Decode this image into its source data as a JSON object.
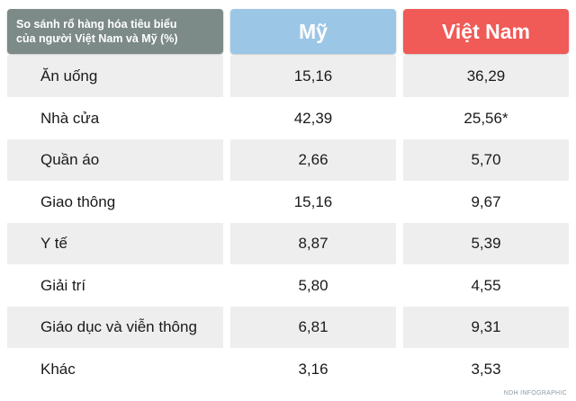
{
  "header": {
    "title_line1": "So sánh rổ hàng hóa tiêu biểu",
    "title_line2": "của người Việt Nam và Mỹ (%)",
    "col_us": "Mỹ",
    "col_vn": "Việt Nam"
  },
  "colors": {
    "title_bg": "#7c8a88",
    "us_bg": "#9cc6e6",
    "vn_bg": "#f05a57",
    "row_shaded": "#eeeeee",
    "row_plain": "#ffffff"
  },
  "chart_data": {
    "type": "table",
    "columns": [
      "Mỹ",
      "Việt Nam"
    ],
    "rows": [
      {
        "label": "Ăn uống",
        "us": "15,16",
        "vn": "36,29"
      },
      {
        "label": "Nhà cửa",
        "us": "42,39",
        "vn": "25,56*"
      },
      {
        "label": "Quần áo",
        "us": "2,66",
        "vn": "5,70"
      },
      {
        "label": "Giao thông",
        "us": "15,16",
        "vn": "9,67"
      },
      {
        "label": "Y tế",
        "us": "8,87",
        "vn": "5,39"
      },
      {
        "label": "Giải trí",
        "us": "5,80",
        "vn": "4,55"
      },
      {
        "label": "Giáo dục và viễn thông",
        "us": "6,81",
        "vn": "9,31"
      },
      {
        "label": "Khác",
        "us": "3,16",
        "vn": "3,53"
      }
    ]
  },
  "footer": {
    "credit": "NDH INFOGRAPHIC"
  }
}
